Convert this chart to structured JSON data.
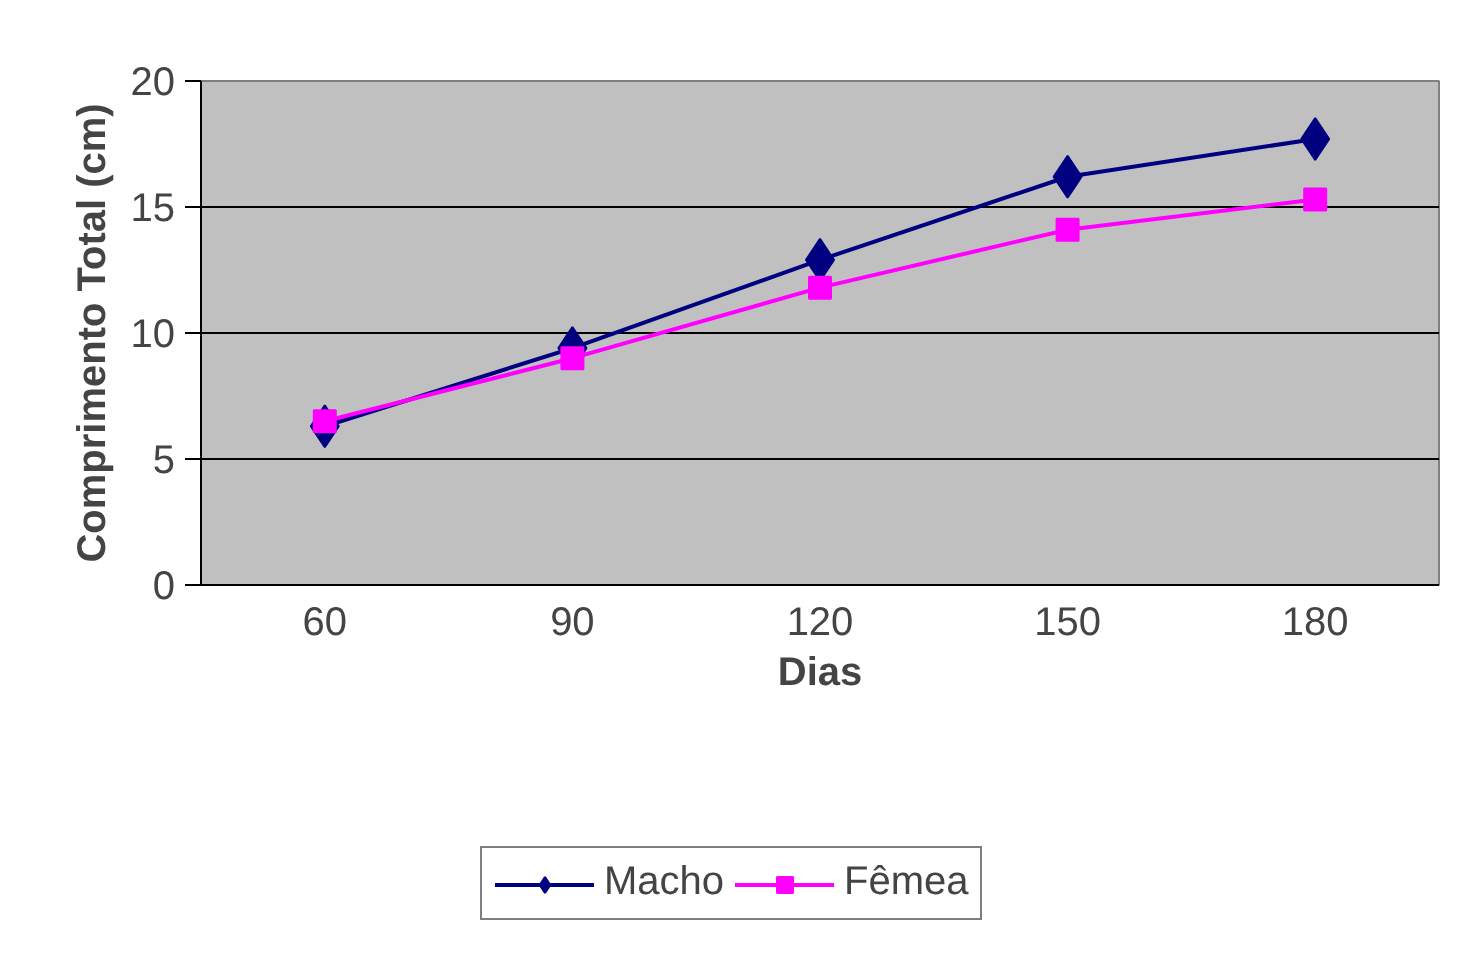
{
  "chart_data": {
    "type": "line",
    "xlabel": "Dias",
    "ylabel": "Comprimento Total (cm)",
    "categories": [
      "60",
      "90",
      "120",
      "150",
      "180"
    ],
    "series": [
      {
        "name": "Macho",
        "color": "#000080",
        "marker": "diamond",
        "values": [
          6.3,
          9.4,
          12.9,
          16.2,
          17.7
        ]
      },
      {
        "name": "Fêmea",
        "color": "#ff00ff",
        "marker": "square",
        "values": [
          6.5,
          9.0,
          11.8,
          14.1,
          15.3
        ]
      }
    ],
    "ylim": [
      0,
      20
    ],
    "yticks": [
      0,
      5,
      10,
      15,
      20
    ],
    "grid": "y",
    "legend": "bottom"
  }
}
